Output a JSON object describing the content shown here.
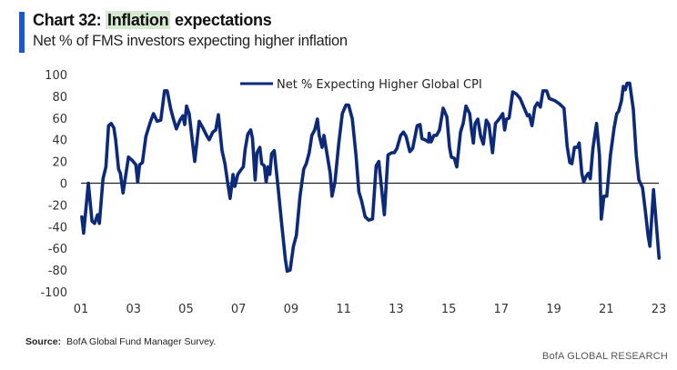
{
  "header": {
    "title_prefix": "Chart 32: ",
    "title_highlight": "Inflation",
    "title_suffix": " expectations",
    "subtitle": "Net % of FMS investors expecting higher inflation",
    "accent_color": "#1a56d6",
    "highlight_color": "#d6e9d0"
  },
  "footer": {
    "source_label": "Source:",
    "source_text": "BofA Global Fund Manager Survey.",
    "brand": "BofA GLOBAL RESEARCH"
  },
  "chart_data": {
    "type": "line",
    "title": "Inflation expectations",
    "subtitle": "Net % of FMS investors expecting higher inflation",
    "xlabel": "",
    "ylabel": "",
    "xlim": [
      2001,
      2023
    ],
    "ylim": [
      -100,
      100
    ],
    "yticks": [
      100,
      80,
      60,
      40,
      20,
      0,
      -20,
      -40,
      -60,
      -80,
      -100
    ],
    "ytick_labels": [
      "100",
      "80",
      "60",
      "40",
      "20",
      "0",
      "-20",
      "-40",
      "-60",
      "-80",
      "-100"
    ],
    "xticks": [
      2001,
      2003,
      2005,
      2007,
      2009,
      2011,
      2013,
      2015,
      2017,
      2019,
      2021,
      2023
    ],
    "xtick_labels": [
      "01",
      "03",
      "05",
      "07",
      "09",
      "11",
      "13",
      "15",
      "17",
      "19",
      "21",
      "23"
    ],
    "grid": false,
    "zero_line": true,
    "legend": {
      "position": "top-center",
      "entries": [
        "Net % Expecting Higher Global CPI"
      ]
    },
    "series": [
      {
        "name": "Net % Expecting Higher Global CPI",
        "color": "#0d2a7a",
        "points": [
          [
            2001.03,
            -31
          ],
          [
            2001.1,
            -46
          ],
          [
            2001.28,
            0
          ],
          [
            2001.42,
            -35
          ],
          [
            2001.52,
            -37
          ],
          [
            2001.63,
            -29
          ],
          [
            2001.7,
            -37
          ],
          [
            2001.84,
            4
          ],
          [
            2001.95,
            15
          ],
          [
            2002.05,
            53
          ],
          [
            2002.15,
            55
          ],
          [
            2002.25,
            51
          ],
          [
            2002.32,
            40
          ],
          [
            2002.43,
            13
          ],
          [
            2002.5,
            9
          ],
          [
            2002.6,
            -9
          ],
          [
            2002.81,
            24
          ],
          [
            2002.95,
            21
          ],
          [
            2003.09,
            17
          ],
          [
            2003.16,
            1
          ],
          [
            2003.23,
            17
          ],
          [
            2003.34,
            19
          ],
          [
            2003.47,
            43
          ],
          [
            2003.65,
            57
          ],
          [
            2003.76,
            64
          ],
          [
            2003.9,
            57
          ],
          [
            2004.04,
            58
          ],
          [
            2004.18,
            85
          ],
          [
            2004.28,
            85
          ],
          [
            2004.42,
            68
          ],
          [
            2004.52,
            59
          ],
          [
            2004.63,
            50
          ],
          [
            2004.77,
            58
          ],
          [
            2004.88,
            62
          ],
          [
            2004.95,
            54
          ],
          [
            2005.02,
            71
          ],
          [
            2005.12,
            64
          ],
          [
            2005.33,
            20
          ],
          [
            2005.5,
            57
          ],
          [
            2005.64,
            51
          ],
          [
            2005.78,
            44
          ],
          [
            2005.88,
            40
          ],
          [
            2006.02,
            47
          ],
          [
            2006.13,
            49
          ],
          [
            2006.23,
            63
          ],
          [
            2006.37,
            30
          ],
          [
            2006.48,
            18
          ],
          [
            2006.58,
            1
          ],
          [
            2006.68,
            -14
          ],
          [
            2006.79,
            8
          ],
          [
            2006.86,
            -3
          ],
          [
            2006.97,
            8
          ],
          [
            2007.11,
            13
          ],
          [
            2007.18,
            15
          ],
          [
            2007.25,
            31
          ],
          [
            2007.35,
            45
          ],
          [
            2007.46,
            49
          ],
          [
            2007.53,
            41
          ],
          [
            2007.63,
            3
          ],
          [
            2007.7,
            28
          ],
          [
            2007.81,
            33
          ],
          [
            2007.88,
            18
          ],
          [
            2007.98,
            16
          ],
          [
            2008.05,
            1
          ],
          [
            2008.12,
            15
          ],
          [
            2008.19,
            8
          ],
          [
            2008.26,
            27
          ],
          [
            2008.36,
            30
          ],
          [
            2008.5,
            -3
          ],
          [
            2008.64,
            -37
          ],
          [
            2008.78,
            -70
          ],
          [
            2008.85,
            -81
          ],
          [
            2008.96,
            -80
          ],
          [
            2009.09,
            -58
          ],
          [
            2009.2,
            -48
          ],
          [
            2009.34,
            -12
          ],
          [
            2009.48,
            13
          ],
          [
            2009.58,
            18
          ],
          [
            2009.69,
            28
          ],
          [
            2009.79,
            44
          ],
          [
            2009.9,
            49
          ],
          [
            2010.0,
            59
          ],
          [
            2010.07,
            44
          ],
          [
            2010.18,
            33
          ],
          [
            2010.25,
            44
          ],
          [
            2010.32,
            34
          ],
          [
            2010.49,
            9
          ],
          [
            2010.56,
            -12
          ],
          [
            2010.67,
            1
          ],
          [
            2010.81,
            36
          ],
          [
            2010.95,
            64
          ],
          [
            2011.09,
            72
          ],
          [
            2011.19,
            72
          ],
          [
            2011.33,
            59
          ],
          [
            2011.47,
            26
          ],
          [
            2011.58,
            -8
          ],
          [
            2011.68,
            -16
          ],
          [
            2011.82,
            -31
          ],
          [
            2011.96,
            -34
          ],
          [
            2012.1,
            -33
          ],
          [
            2012.24,
            16
          ],
          [
            2012.34,
            20
          ],
          [
            2012.45,
            -6
          ],
          [
            2012.55,
            -29
          ],
          [
            2012.69,
            26
          ],
          [
            2012.83,
            28
          ],
          [
            2012.93,
            28
          ],
          [
            2013.03,
            32
          ],
          [
            2013.17,
            44
          ],
          [
            2013.28,
            47
          ],
          [
            2013.38,
            43
          ],
          [
            2013.52,
            29
          ],
          [
            2013.63,
            32
          ],
          [
            2013.8,
            53
          ],
          [
            2013.91,
            54
          ],
          [
            2013.98,
            41
          ],
          [
            2014.09,
            40
          ],
          [
            2014.23,
            38
          ],
          [
            2014.26,
            46
          ],
          [
            2014.33,
            38
          ],
          [
            2014.44,
            44
          ],
          [
            2014.54,
            44
          ],
          [
            2014.65,
            49
          ],
          [
            2014.79,
            69
          ],
          [
            2014.93,
            61
          ],
          [
            2015.03,
            33
          ],
          [
            2015.1,
            24
          ],
          [
            2015.21,
            23
          ],
          [
            2015.31,
            15
          ],
          [
            2015.45,
            47
          ],
          [
            2015.55,
            55
          ],
          [
            2015.66,
            71
          ],
          [
            2015.8,
            64
          ],
          [
            2015.87,
            49
          ],
          [
            2015.94,
            37
          ],
          [
            2016.01,
            55
          ],
          [
            2016.11,
            59
          ],
          [
            2016.22,
            43
          ],
          [
            2016.32,
            36
          ],
          [
            2016.43,
            58
          ],
          [
            2016.53,
            54
          ],
          [
            2016.67,
            28
          ],
          [
            2016.78,
            55
          ],
          [
            2016.92,
            59
          ],
          [
            2017.06,
            64
          ],
          [
            2017.13,
            49
          ],
          [
            2017.2,
            59
          ],
          [
            2017.3,
            60
          ],
          [
            2017.44,
            84
          ],
          [
            2017.58,
            82
          ],
          [
            2017.72,
            78
          ],
          [
            2017.86,
            70
          ],
          [
            2018.0,
            62
          ],
          [
            2018.07,
            63
          ],
          [
            2018.17,
            53
          ],
          [
            2018.28,
            70
          ],
          [
            2018.38,
            74
          ],
          [
            2018.49,
            70
          ],
          [
            2018.59,
            85
          ],
          [
            2018.73,
            85
          ],
          [
            2018.83,
            78
          ],
          [
            2019.04,
            76
          ],
          [
            2019.22,
            73
          ],
          [
            2019.39,
            69
          ],
          [
            2019.51,
            34
          ],
          [
            2019.61,
            19
          ],
          [
            2019.69,
            18
          ],
          [
            2019.79,
            33
          ],
          [
            2019.9,
            33
          ],
          [
            2019.97,
            37
          ],
          [
            2020.07,
            9
          ],
          [
            2020.14,
            1
          ],
          [
            2020.25,
            7
          ],
          [
            2020.32,
            9
          ],
          [
            2020.39,
            4
          ],
          [
            2020.49,
            32
          ],
          [
            2020.63,
            55
          ],
          [
            2020.74,
            26
          ],
          [
            2020.81,
            -33
          ],
          [
            2020.91,
            -12
          ],
          [
            2021.02,
            -12
          ],
          [
            2021.16,
            26
          ],
          [
            2021.3,
            51
          ],
          [
            2021.4,
            64
          ],
          [
            2021.47,
            66
          ],
          [
            2021.58,
            76
          ],
          [
            2021.65,
            89
          ],
          [
            2021.72,
            86
          ],
          [
            2021.79,
            92
          ],
          [
            2021.89,
            92
          ],
          [
            2022.03,
            68
          ],
          [
            2022.14,
            26
          ],
          [
            2022.24,
            3
          ],
          [
            2022.38,
            -4
          ],
          [
            2022.49,
            -26
          ],
          [
            2022.59,
            -48
          ],
          [
            2022.66,
            -58
          ],
          [
            2022.8,
            -6
          ],
          [
            2022.91,
            -39
          ],
          [
            2023.01,
            -69
          ]
        ]
      }
    ]
  }
}
